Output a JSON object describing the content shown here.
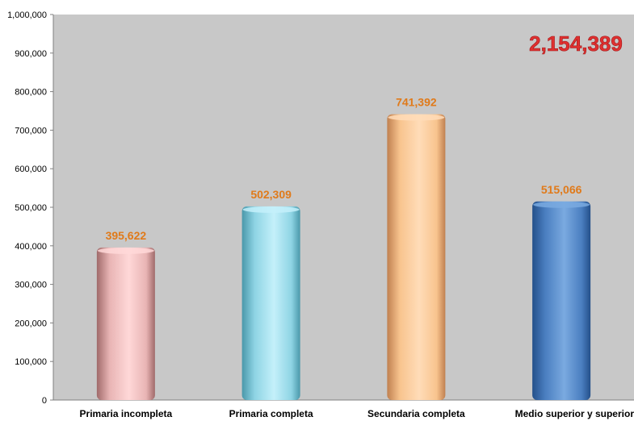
{
  "chart_data": {
    "type": "bar",
    "title": "",
    "xlabel": "",
    "ylabel": "",
    "categories": [
      "Primaria incompleta",
      "Primaria completa",
      "Secundaria completa",
      "Medio superior y superior"
    ],
    "values": [
      395622,
      502309,
      741392,
      515066
    ],
    "value_labels": [
      "395,622",
      "502,309",
      "741,392",
      "515,066"
    ],
    "ylim": [
      0,
      1000000
    ],
    "y_ticks": [
      0,
      100000,
      200000,
      300000,
      400000,
      500000,
      600000,
      700000,
      800000,
      900000,
      1000000
    ],
    "y_tick_labels": [
      "0",
      "100,000",
      "200,000",
      "300,000",
      "400,000",
      "500,000",
      "600,000",
      "700,000",
      "800,000",
      "900,000",
      "1,000,000"
    ],
    "grid": false,
    "legend": "none",
    "annotation": "2,154,389",
    "colors": {
      "plot_background": "#c8c8c8",
      "bars": [
        "#e8b4b4",
        "#8ed4e4",
        "#f8c48e",
        "#4a7ec0"
      ],
      "bar_shades": [
        [
          "#a06a6a",
          "#ffd8d8"
        ],
        [
          "#4a98aa",
          "#c4f0fa"
        ],
        [
          "#c08050",
          "#ffdcb8"
        ],
        [
          "#24508a",
          "#7aaae0"
        ]
      ],
      "data_label": "#e07a1a",
      "annotation": "#e03030"
    }
  }
}
